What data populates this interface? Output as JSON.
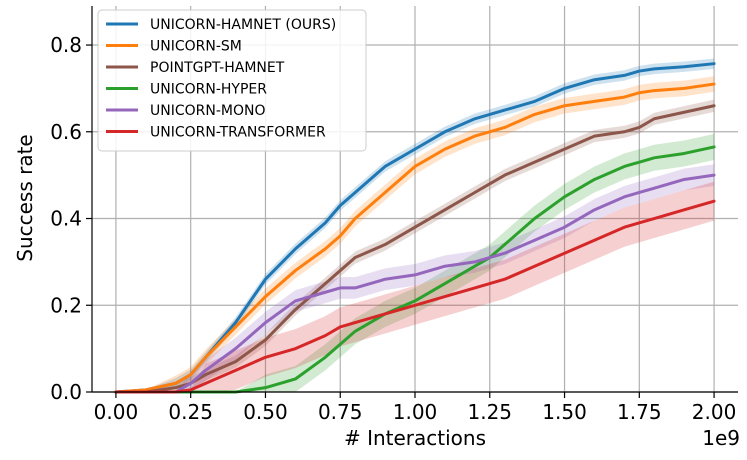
{
  "chart_data": {
    "type": "line",
    "title": "",
    "xlabel": "# Interactions",
    "ylabel": "Success rate",
    "x_offset_label": "1e9",
    "xlim": [
      -0.08,
      2.08
    ],
    "ylim": [
      0.0,
      0.89
    ],
    "xticks": [
      0.0,
      0.25,
      0.5,
      0.75,
      1.0,
      1.25,
      1.5,
      1.75,
      2.0
    ],
    "xtick_labels": [
      "0.00",
      "0.25",
      "0.50",
      "0.75",
      "1.00",
      "1.25",
      "1.50",
      "1.75",
      "2.00"
    ],
    "yticks": [
      0.0,
      0.2,
      0.4,
      0.6,
      0.8
    ],
    "ytick_labels": [
      "0.0",
      "0.2",
      "0.4",
      "0.6",
      "0.8"
    ],
    "grid": true,
    "legend_position": "top-left",
    "x": [
      0.0,
      0.1,
      0.2,
      0.25,
      0.3,
      0.4,
      0.5,
      0.6,
      0.7,
      0.75,
      0.8,
      0.9,
      1.0,
      1.1,
      1.2,
      1.25,
      1.3,
      1.4,
      1.5,
      1.6,
      1.7,
      1.75,
      1.8,
      1.9,
      2.0
    ],
    "series": [
      {
        "name": "UNICORN-HAMNET (OURS)",
        "color": "#1f77b4",
        "band": 0.012,
        "values": [
          0.0,
          0.005,
          0.02,
          0.04,
          0.08,
          0.16,
          0.26,
          0.33,
          0.39,
          0.43,
          0.46,
          0.52,
          0.56,
          0.6,
          0.63,
          0.64,
          0.65,
          0.67,
          0.7,
          0.72,
          0.73,
          0.74,
          0.745,
          0.75,
          0.757
        ]
      },
      {
        "name": "UNICORN-SM",
        "color": "#ff7f0e",
        "band": 0.018,
        "values": [
          0.0,
          0.005,
          0.02,
          0.04,
          0.08,
          0.15,
          0.22,
          0.28,
          0.33,
          0.36,
          0.4,
          0.46,
          0.52,
          0.56,
          0.59,
          0.6,
          0.61,
          0.64,
          0.66,
          0.67,
          0.68,
          0.69,
          0.695,
          0.7,
          0.71
        ]
      },
      {
        "name": "POINTGPT-HAMNET",
        "color": "#8c564b",
        "band": 0.014,
        "values": [
          0.0,
          0.0,
          0.01,
          0.02,
          0.04,
          0.07,
          0.12,
          0.19,
          0.25,
          0.28,
          0.31,
          0.34,
          0.38,
          0.42,
          0.46,
          0.48,
          0.5,
          0.53,
          0.56,
          0.59,
          0.6,
          0.61,
          0.63,
          0.645,
          0.66
        ]
      },
      {
        "name": "UNICORN-HYPER",
        "color": "#2ca02c",
        "band": 0.03,
        "values": [
          0.0,
          0.0,
          0.0,
          0.0,
          0.0,
          0.0,
          0.01,
          0.03,
          0.08,
          0.11,
          0.14,
          0.18,
          0.21,
          0.25,
          0.29,
          0.31,
          0.34,
          0.4,
          0.45,
          0.49,
          0.52,
          0.53,
          0.54,
          0.55,
          0.565
        ]
      },
      {
        "name": "UNICORN-MONO",
        "color": "#9467bd",
        "band": 0.025,
        "values": [
          0.0,
          0.0,
          0.0,
          0.02,
          0.05,
          0.1,
          0.16,
          0.21,
          0.23,
          0.24,
          0.24,
          0.26,
          0.27,
          0.29,
          0.3,
          0.31,
          0.32,
          0.35,
          0.38,
          0.42,
          0.45,
          0.46,
          0.47,
          0.49,
          0.5
        ]
      },
      {
        "name": "UNICORN-TRANSFORMER",
        "color": "#d62728",
        "band": 0.045,
        "values": [
          0.0,
          0.0,
          0.0,
          0.005,
          0.02,
          0.05,
          0.08,
          0.1,
          0.13,
          0.15,
          0.16,
          0.18,
          0.2,
          0.22,
          0.24,
          0.25,
          0.26,
          0.29,
          0.32,
          0.35,
          0.38,
          0.39,
          0.4,
          0.42,
          0.44
        ]
      }
    ]
  }
}
